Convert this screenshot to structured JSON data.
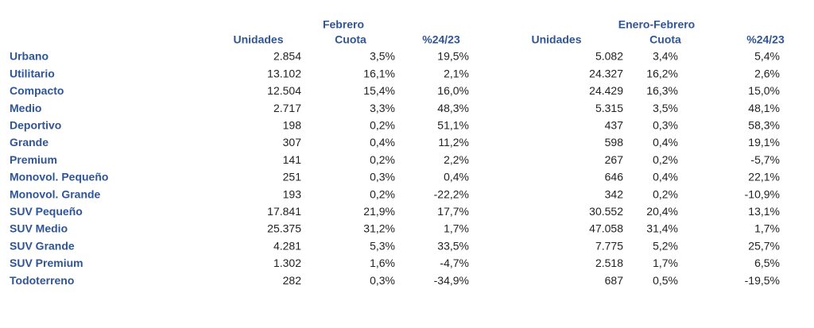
{
  "table": {
    "groups": [
      "Febrero",
      "Enero-Febrero"
    ],
    "columns": [
      "Unidades",
      "Cuota",
      "%24/23",
      "Unidades",
      "Cuota",
      "%24/23"
    ],
    "rows": [
      {
        "label": "Urbano",
        "cells": [
          "2.854",
          "3,5%",
          "19,5%",
          "5.082",
          "3,4%",
          "5,4%"
        ]
      },
      {
        "label": "Utilitario",
        "cells": [
          "13.102",
          "16,1%",
          "2,1%",
          "24.327",
          "16,2%",
          "2,6%"
        ]
      },
      {
        "label": "Compacto",
        "cells": [
          "12.504",
          "15,4%",
          "16,0%",
          "24.429",
          "16,3%",
          "15,0%"
        ]
      },
      {
        "label": "Medio",
        "cells": [
          "2.717",
          "3,3%",
          "48,3%",
          "5.315",
          "3,5%",
          "48,1%"
        ]
      },
      {
        "label": "Deportivo",
        "cells": [
          "198",
          "0,2%",
          "51,1%",
          "437",
          "0,3%",
          "58,3%"
        ]
      },
      {
        "label": "Grande",
        "cells": [
          "307",
          "0,4%",
          "11,2%",
          "598",
          "0,4%",
          "19,1%"
        ]
      },
      {
        "label": "Premium",
        "cells": [
          "141",
          "0,2%",
          "2,2%",
          "267",
          "0,2%",
          "-5,7%"
        ]
      },
      {
        "label": "Monovol. Pequeño",
        "cells": [
          "251",
          "0,3%",
          "0,4%",
          "646",
          "0,4%",
          "22,1%"
        ]
      },
      {
        "label": "Monovol. Grande",
        "cells": [
          "193",
          "0,2%",
          "-22,2%",
          "342",
          "0,2%",
          "-10,9%"
        ]
      },
      {
        "label": "SUV Pequeño",
        "cells": [
          "17.841",
          "21,9%",
          "17,7%",
          "30.552",
          "20,4%",
          "13,1%"
        ]
      },
      {
        "label": "SUV Medio",
        "cells": [
          "25.375",
          "31,2%",
          "1,7%",
          "47.058",
          "31,4%",
          "1,7%"
        ]
      },
      {
        "label": "SUV Grande",
        "cells": [
          "4.281",
          "5,3%",
          "33,5%",
          "7.775",
          "5,2%",
          "25,7%"
        ]
      },
      {
        "label": "SUV Premium",
        "cells": [
          "1.302",
          "1,6%",
          "-4,7%",
          "2.518",
          "1,7%",
          "6,5%"
        ]
      },
      {
        "label": "Todoterreno",
        "cells": [
          "282",
          "0,3%",
          "-34,9%",
          "687",
          "0,5%",
          "-19,5%"
        ]
      }
    ]
  }
}
